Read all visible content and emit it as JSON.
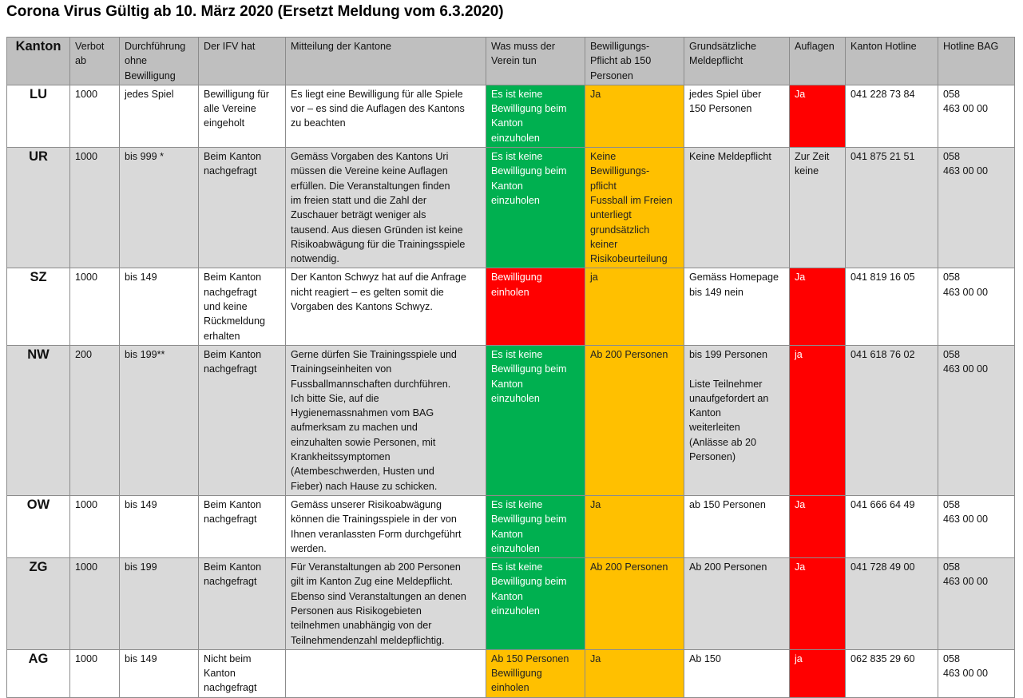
{
  "title": "Corona Virus Gültig ab 10. März 2020 (Ersetzt Meldung vom 6.3.2020)",
  "colors": {
    "header": "#bfbfbf",
    "alt_row": "#d9d9d9",
    "green": "#00b050",
    "yellow": "#ffc000",
    "red": "#ff0000"
  },
  "headers": [
    "Kanton",
    "Verbot\nab",
    "Durchführung\nohne\nBewilligung",
    "Der IFV hat",
    "Mitteilung der Kantone",
    "Was muss der\nVerein tun",
    "Bewilligungs-\nPflicht ab 150\nPersonen",
    "Grundsätzliche\nMeldepflicht",
    "Auflagen",
    "Kanton Hotline",
    "Hotline BAG"
  ],
  "rows": [
    {
      "cells": [
        "LU",
        "1000",
        "jedes Spiel",
        "Bewilligung für\nalle Vereine\neingeholt",
        "Es liegt eine Bewilligung für alle Spiele\nvor – es sind die Auflagen des Kantons\nzu beachten",
        "Es ist keine\nBewilligung  beim\nKanton\neinzuholen",
        "Ja",
        "jedes Spiel über\n150 Personen",
        "Ja",
        "041 228 73 84",
        "058\n463 00 00"
      ],
      "verein_status": "green",
      "auflagen_status": "red"
    },
    {
      "cells": [
        "UR",
        "1000",
        "bis 999 *",
        "Beim Kanton\nnachgefragt",
        "Gemäss Vorgaben des Kantons Uri\nmüssen die Vereine keine Auflagen\nerfüllen. Die Veranstaltungen finden\nim freien statt und die Zahl der\nZuschauer beträgt weniger als\ntausend. Aus diesen Gründen ist keine\nRisikoabwägung für die Trainingsspiele\nnotwendig.",
        "Es ist keine\nBewilligung  beim\nKanton\neinzuholen",
        "Keine\nBewilligungs-\npflicht\nFussball im Freien\nunterliegt\ngrundsätzlich\nkeiner\nRisikobeurteilung",
        "Keine Meldepflicht",
        "Zur Zeit\nkeine",
        "041 875 21 51",
        "058\n463 00 00"
      ],
      "verein_status": "green",
      "auflagen_status": "none"
    },
    {
      "cells": [
        "SZ",
        "1000",
        "bis 149",
        "Beim Kanton\nnachgefragt\nund keine\nRückmeldung\nerhalten",
        "Der Kanton Schwyz hat auf die Anfrage\nnicht reagiert – es gelten somit die\nVorgaben des Kantons Schwyz.",
        "Bewilligung\neinholen",
        "ja",
        "Gemäss Homepage\nbis 149 nein",
        "Ja",
        "041 819 16 05",
        "058\n463 00 00"
      ],
      "verein_status": "red",
      "auflagen_status": "red"
    },
    {
      "cells": [
        "NW",
        "200",
        "bis 199**",
        "Beim Kanton\nnachgefragt",
        "Gerne dürfen Sie Trainingsspiele und\nTrainingseinheiten von\nFussballmannschaften durchführen.\nIch bitte Sie, auf die\nHygienemassnahmen vom BAG\naufmerksam zu machen und\neinzuhalten sowie Personen, mit\nKrankheitssymptomen\n(Atembeschwerden, Husten und\nFieber) nach Hause zu schicken.",
        "Es ist keine\nBewilligung  beim\nKanton\neinzuholen",
        "Ab 200 Personen",
        "bis 199 Personen\n\nListe Teilnehmer\nunaufgefordert an\nKanton\nweiterleiten\n(Anlässe ab 20\nPersonen)",
        "ja",
        "041 618 76 02",
        "058\n463 00 00"
      ],
      "verein_status": "green",
      "auflagen_status": "red"
    },
    {
      "cells": [
        "OW",
        "1000",
        "bis 149",
        "Beim Kanton\nnachgefragt",
        "Gemäss unserer Risikoabwägung\nkönnen die Trainingsspiele in der von\nIhnen veranlassten Form durchgeführt\nwerden.",
        "Es ist keine\nBewilligung  beim\nKanton\neinzuholen",
        "Ja",
        "ab 150 Personen",
        "Ja",
        "041 666 64 49",
        "058\n463 00 00"
      ],
      "verein_status": "green",
      "auflagen_status": "red"
    },
    {
      "cells": [
        "ZG",
        "1000",
        "bis 199",
        "Beim Kanton\nnachgefragt",
        "Für Veranstaltungen ab 200 Personen\ngilt im Kanton Zug eine Meldepflicht.\nEbenso sind Veranstaltungen an denen\nPersonen aus Risikogebieten\nteilnehmen unabhängig von der\nTeilnehmendenzahl meldepflichtig.",
        "Es ist keine\nBewilligung  beim\nKanton\neinzuholen",
        "Ab 200 Personen",
        "Ab 200 Personen",
        "Ja",
        "041 728 49 00",
        "058\n463 00 00"
      ],
      "verein_status": "green",
      "auflagen_status": "red"
    },
    {
      "cells": [
        "AG",
        "1000",
        "bis 149",
        "Nicht beim\nKanton\nnachgefragt",
        "",
        "Ab 150 Personen\nBewilligung\neinholen",
        "Ja",
        "Ab 150",
        "ja",
        "062 835 29 60",
        "058\n463 00 00"
      ],
      "verein_status": "yellow",
      "auflagen_status": "red"
    }
  ]
}
